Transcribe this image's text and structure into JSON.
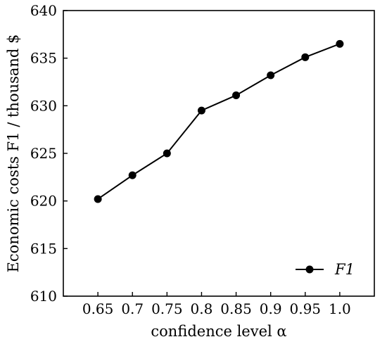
{
  "chart_data": {
    "type": "line",
    "x": [
      0.65,
      0.7,
      0.75,
      0.8,
      0.85,
      0.9,
      0.95,
      1.0
    ],
    "x_tick_labels": [
      "0.65",
      "0.7",
      "0.75",
      "0.8",
      "0.85",
      "0.9",
      "0.95",
      "1.0"
    ],
    "series": [
      {
        "name": "F1",
        "values": [
          620.2,
          622.7,
          625.0,
          629.5,
          631.1,
          633.2,
          635.1,
          636.5
        ],
        "color": "#000000",
        "marker": "circle"
      }
    ],
    "xlabel": "confidence level α",
    "ylabel": "Economic costs F1 / thousand $",
    "ylim": [
      610,
      640
    ],
    "yticks": [
      610,
      615,
      620,
      625,
      630,
      635,
      640
    ],
    "xlim": [
      0.6,
      1.05
    ],
    "grid": false,
    "legend": {
      "position": "bottom-right",
      "label": "F1"
    }
  }
}
